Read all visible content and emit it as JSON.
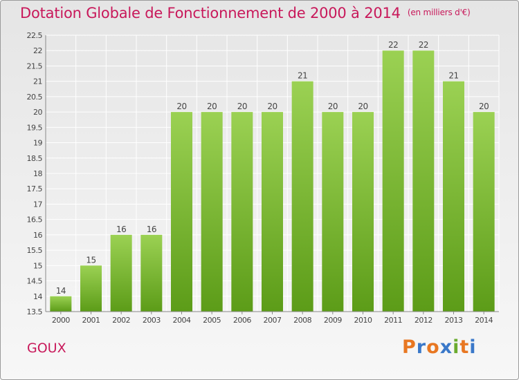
{
  "header": {
    "title": "Dotation Globale de Fonctionnement de 2000 à 2014",
    "unit": "(en milliers d'€)"
  },
  "footer": {
    "commune": "GOUX",
    "logo_text": "Proxiti",
    "logo_colors": [
      "#e87722",
      "#3a78c9",
      "#e87722",
      "#3a78c9",
      "#6aab2e",
      "#e87722",
      "#3a78c9"
    ]
  },
  "colors": {
    "title": "#c8185a",
    "bar_top": "#9bd153",
    "bar_bottom": "#5c9c18",
    "grid": "#ffffff",
    "axis_text": "#444444"
  },
  "chart_data": {
    "type": "bar",
    "categories": [
      "2000",
      "2001",
      "2002",
      "2003",
      "2004",
      "2005",
      "2006",
      "2007",
      "2008",
      "2009",
      "2010",
      "2011",
      "2012",
      "2013",
      "2014"
    ],
    "values": [
      14,
      15,
      16,
      16,
      20,
      20,
      20,
      20,
      21,
      20,
      20,
      22,
      22,
      21,
      20
    ],
    "data_labels": [
      "14",
      "15",
      "16",
      "16",
      "20",
      "20",
      "20",
      "20",
      "21",
      "20",
      "20",
      "22",
      "22",
      "21",
      "20"
    ],
    "ylim": [
      13.5,
      22.5
    ],
    "yticks": [
      "13.5",
      "14",
      "14.5",
      "15",
      "15.5",
      "16",
      "16.5",
      "17",
      "17.5",
      "18",
      "18.5",
      "19",
      "19.5",
      "20",
      "20.5",
      "21",
      "21.5",
      "22",
      "22.5"
    ],
    "grid": true,
    "title": "Dotation Globale de Fonctionnement de 2000 à 2014",
    "xlabel": "",
    "ylabel": ""
  }
}
